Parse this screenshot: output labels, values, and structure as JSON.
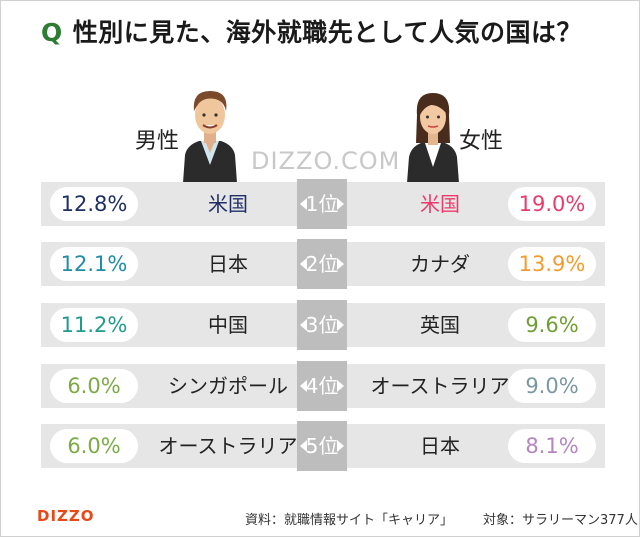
{
  "title_prefix": "Q",
  "title": "性別に見た、海外就職先として人気の国は？",
  "watermark": "DIZZO.COM",
  "male_label": "男性",
  "female_label": "女性",
  "chart_data": {
    "type": "table",
    "rows": [
      {
        "rank": "1位",
        "male_country": "米国",
        "male_percent": "12.8%",
        "female_country": "米国",
        "female_percent": "19.0%"
      },
      {
        "rank": "2位",
        "male_country": "日本",
        "male_percent": "12.1%",
        "female_country": "カナダ",
        "female_percent": "13.9%"
      },
      {
        "rank": "3位",
        "male_country": "中国",
        "male_percent": "11.2%",
        "female_country": "英国",
        "female_percent": "9.6%"
      },
      {
        "rank": "4位",
        "male_country": "シンガポール",
        "male_percent": "6.0%",
        "female_country": "オーストラリア",
        "female_percent": "9.0%"
      },
      {
        "rank": "5位",
        "male_country": "オーストラリア",
        "male_percent": "6.0%",
        "female_country": "日本",
        "female_percent": "8.1%"
      }
    ]
  },
  "colors": {
    "male_percent": [
      "#1f2f66",
      "#1f8ca8",
      "#1f9c8c",
      "#7cab45",
      "#7cab45"
    ],
    "female_percent": [
      "#ec3a6a",
      "#f39c2b",
      "#6f9e34",
      "#7b97a3",
      "#b386c1"
    ],
    "male_country_row1": "#1f2f66",
    "female_country_row1": "#ec3a6a"
  },
  "footer_logo": "DIZZO",
  "source": "資料：就職情報サイト「キャリア」",
  "target": "対象：サラリーマン377人"
}
